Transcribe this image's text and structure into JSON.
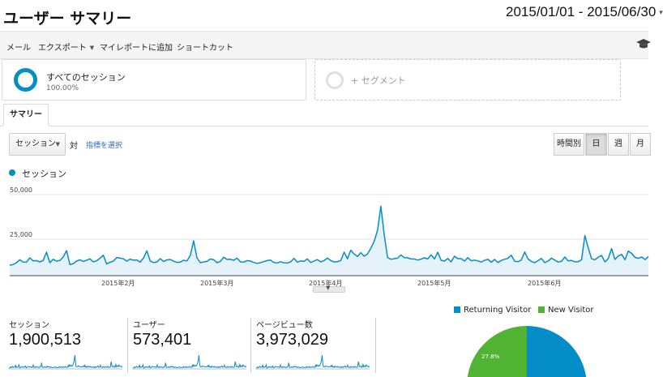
{
  "page": {
    "title": "ユーザー サマリー",
    "date_range": "2015/01/01 - 2015/06/30"
  },
  "toolbar": {
    "email": "メール",
    "export": "エクスポート",
    "add_to_dashboard": "マイレポートに追加",
    "shortcut": "ショートカット"
  },
  "segments": {
    "active": {
      "name": "すべてのセッション",
      "percent": "100.00%"
    },
    "add_label": "+ セグメント"
  },
  "tabs": [
    "サマリー"
  ],
  "controls": {
    "metric": "セッション",
    "versus": "対",
    "pick_metric": "指標を選択",
    "granularity": [
      "時間別",
      "日",
      "週",
      "月"
    ],
    "active_granularity": "日"
  },
  "colors": {
    "accent": "#058dc7",
    "new_visitor": "#50b432",
    "fill": "#e6f2f9"
  },
  "chart_data": {
    "type": "area",
    "legend": "セッション",
    "yticks": [
      "50,000",
      "25,000"
    ],
    "ylim": [
      0,
      50000
    ],
    "xticks": [
      "2015年2月",
      "2015年3月",
      "2015年4月",
      "2015年5月",
      "2015年6月"
    ],
    "values": [
      6500,
      6800,
      8000,
      9800,
      8400,
      8300,
      11000,
      9100,
      9300,
      8500,
      9400,
      14500,
      8000,
      10100,
      9000,
      9400,
      11500,
      15500,
      6800,
      7400,
      9000,
      9800,
      8800,
      9500,
      10400,
      8500,
      9200,
      10800,
      12600,
      7200,
      8300,
      9000,
      11200,
      10800,
      10400,
      9000,
      10200,
      9500,
      9700,
      8300,
      10800,
      15300,
      9100,
      8100,
      8400,
      10500,
      8800,
      9700,
      10000,
      8900,
      8200,
      8400,
      9500,
      9100,
      12500,
      21500,
      11000,
      8000,
      8500,
      8800,
      10300,
      9800,
      8000,
      8800,
      11400,
      10000,
      10100,
      9500,
      10800,
      8500,
      8400,
      9300,
      9000,
      8100,
      7600,
      8000,
      8700,
      9300,
      9600,
      8100,
      7800,
      8600,
      7900,
      7800,
      8500,
      10700,
      8300,
      9100,
      8800,
      10300,
      8100,
      9000,
      9900,
      8500,
      9300,
      10900,
      9300,
      8500,
      8600,
      9300,
      14500,
      10400,
      15700,
      13400,
      11800,
      14200,
      12000,
      13400,
      17000,
      21200,
      28000,
      42800,
      25000,
      11200,
      10100,
      10500,
      10800,
      12800,
      11100,
      11000,
      10300,
      10300,
      9600,
      10200,
      11000,
      10300,
      12800,
      10300,
      14400,
      9500,
      9000,
      10600,
      8500,
      12000,
      10500,
      10500,
      9000,
      11100,
      9200,
      9600,
      9100,
      8400,
      9500,
      10100,
      8200,
      10000,
      8100,
      9400,
      10100,
      10700,
      12600,
      8900,
      8600,
      9700,
      14600,
      10300,
      8800,
      8000,
      9300,
      10600,
      8000,
      9000,
      10800,
      9600,
      8400,
      8800,
      11500,
      9100,
      9400,
      8500,
      8600,
      9800,
      24700,
      17300,
      10400,
      9800,
      11400,
      12500,
      8500,
      10600,
      16700,
      10000,
      12200,
      13100,
      9800,
      15200,
      13700,
      11300,
      10700,
      11500,
      9900,
      11800
    ]
  },
  "stats": [
    {
      "label": "セッション",
      "value": "1,900,513"
    },
    {
      "label": "ユーザー",
      "value": "573,401"
    },
    {
      "label": "ページビュー数",
      "value": "3,973,029"
    }
  ],
  "pie": {
    "legend": [
      "Returning Visitor",
      "New Visitor"
    ],
    "new_visitor_label": "27.8%",
    "new_visitor_fraction": 0.278
  }
}
